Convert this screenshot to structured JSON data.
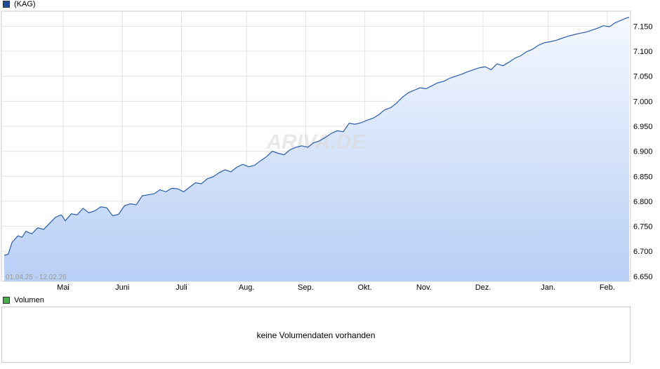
{
  "legend": {
    "main_label": "(KAG)",
    "main_color": "#1e4d9b",
    "volume_label": "Volumen",
    "volume_color": "#4caf50"
  },
  "volume": {
    "empty_message": "keine Volumendaten vorhanden"
  },
  "watermark": "ARIVA.DE",
  "chart_data": {
    "type": "area",
    "date_range_label": "01.04.25 - 12.02.26",
    "x_ticks": [
      "Mai",
      "Juni",
      "Juli",
      "Aug.",
      "Sep.",
      "Okt.",
      "Nov.",
      "Dez.",
      "Jan.",
      "Feb."
    ],
    "y_ticks": [
      "7.150",
      "7.100",
      "7.050",
      "7.000",
      "6.950",
      "6.900",
      "6.850",
      "6.800",
      "6.750",
      "6.700",
      "6.650"
    ],
    "ylim": [
      6640,
      7180
    ],
    "grid": true,
    "line_color": "#2a5caa",
    "fill_top": "#f4f8ff",
    "fill_bottom": "#b8cff5",
    "series": [
      {
        "x": [
          "2025-04-01",
          "2025-04-03",
          "2025-04-05",
          "2025-04-08",
          "2025-04-10",
          "2025-04-12",
          "2025-04-15",
          "2025-04-18",
          "2025-04-21",
          "2025-04-24",
          "2025-04-27",
          "2025-04-30"
        ],
        "y": [
          6692,
          6694,
          6718,
          6731,
          6728,
          6740,
          6735,
          6747,
          6744,
          6756,
          6768,
          6773
        ]
      },
      {
        "x": [
          "2025-05-02",
          "2025-05-05",
          "2025-05-08",
          "2025-05-11",
          "2025-05-14",
          "2025-05-17",
          "2025-05-20",
          "2025-05-23",
          "2025-05-26",
          "2025-05-29"
        ],
        "y": [
          6761,
          6775,
          6773,
          6786,
          6777,
          6781,
          6789,
          6787,
          6771,
          6774
        ]
      },
      {
        "x": [
          "2025-06-01",
          "2025-06-04",
          "2025-06-07",
          "2025-06-10",
          "2025-06-13",
          "2025-06-16",
          "2025-06-19",
          "2025-06-22",
          "2025-06-25",
          "2025-06-28"
        ],
        "y": [
          6791,
          6795,
          6793,
          6811,
          6813,
          6815,
          6823,
          6819,
          6826,
          6825
        ]
      },
      {
        "x": [
          "2025-07-01",
          "2025-07-04",
          "2025-07-07",
          "2025-07-10",
          "2025-07-13",
          "2025-07-16",
          "2025-07-19",
          "2025-07-22",
          "2025-07-25",
          "2025-07-28",
          "2025-07-31"
        ],
        "y": [
          6819,
          6828,
          6837,
          6835,
          6845,
          6849,
          6857,
          6863,
          6859,
          6868,
          6874
        ]
      },
      {
        "x": [
          "2025-08-03",
          "2025-08-06",
          "2025-08-09",
          "2025-08-12",
          "2025-08-15",
          "2025-08-18",
          "2025-08-21",
          "2025-08-24",
          "2025-08-27",
          "2025-08-30"
        ],
        "y": [
          6869,
          6872,
          6881,
          6889,
          6900,
          6896,
          6893,
          6903,
          6908,
          6911
        ]
      },
      {
        "x": [
          "2025-09-02",
          "2025-09-05",
          "2025-09-08",
          "2025-09-11",
          "2025-09-14",
          "2025-09-17",
          "2025-09-20",
          "2025-09-23",
          "2025-09-26",
          "2025-09-29"
        ],
        "y": [
          6908,
          6917,
          6921,
          6928,
          6936,
          6941,
          6939,
          6956,
          6954,
          6957
        ]
      },
      {
        "x": [
          "2025-10-02",
          "2025-10-05",
          "2025-10-08",
          "2025-10-11",
          "2025-10-14",
          "2025-10-17",
          "2025-10-20",
          "2025-10-23",
          "2025-10-26",
          "2025-10-29"
        ],
        "y": [
          6962,
          6966,
          6973,
          6983,
          6987,
          6996,
          7008,
          7017,
          7022,
          7027
        ]
      },
      {
        "x": [
          "2025-11-01",
          "2025-11-04",
          "2025-11-07",
          "2025-11-10",
          "2025-11-13",
          "2025-11-16",
          "2025-11-19",
          "2025-11-22",
          "2025-11-25",
          "2025-11-28"
        ],
        "y": [
          7025,
          7031,
          7037,
          7040,
          7046,
          7050,
          7054,
          7059,
          7063,
          7067
        ]
      },
      {
        "x": [
          "2025-12-01",
          "2025-12-04",
          "2025-12-07",
          "2025-12-10",
          "2025-12-13",
          "2025-12-16",
          "2025-12-19",
          "2025-12-22",
          "2025-12-25",
          "2025-12-28",
          "2025-12-31"
        ],
        "y": [
          7069,
          7063,
          7075,
          7071,
          7078,
          7086,
          7091,
          7099,
          7104,
          7112,
          7117
        ]
      },
      {
        "x": [
          "2026-01-03",
          "2026-01-06",
          "2026-01-09",
          "2026-01-12",
          "2026-01-15",
          "2026-01-18",
          "2026-01-21",
          "2026-01-24",
          "2026-01-27",
          "2026-01-30"
        ],
        "y": [
          7119,
          7122,
          7126,
          7130,
          7133,
          7136,
          7138,
          7142,
          7146,
          7151
        ]
      },
      {
        "x": [
          "2026-02-02",
          "2026-02-05",
          "2026-02-08",
          "2026-02-11",
          "2026-02-12"
        ],
        "y": [
          7149,
          7157,
          7162,
          7167,
          7168
        ]
      }
    ]
  }
}
